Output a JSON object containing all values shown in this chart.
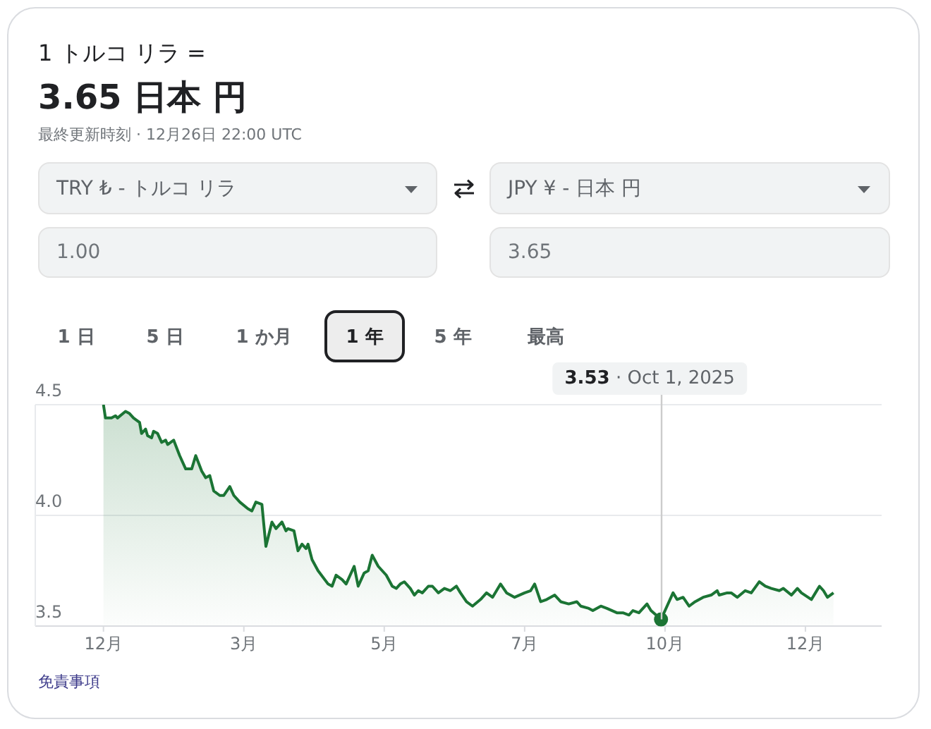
{
  "chart_data": {
    "type": "area",
    "title": "1 トルコ リラ =",
    "subtitle": "3.65 日本 円",
    "annotations": [
      "最終更新時刻 · 12月26日 22:00 UTC",
      "TRY ₺ - トルコ リラ",
      "JPY ¥ - 日本 円",
      "1.00",
      "3.65",
      "1 日",
      "5 日",
      "1 か月",
      "1 年",
      "5 年",
      "最高",
      {
        "text": "3.53 · Oct 1, 2025",
        "x": "2025-10-01",
        "y": 3.53
      },
      "免責事項"
    ],
    "x": [
      "2024-12-27",
      "2024-12-28",
      "2024-12-31",
      "2025-01-02",
      "2025-01-03",
      "2025-01-07",
      "2025-01-09",
      "2025-01-11",
      "2025-01-14",
      "2025-01-15",
      "2025-01-17",
      "2025-01-18",
      "2025-01-20",
      "2025-01-21",
      "2025-01-23",
      "2025-01-25",
      "2025-01-27",
      "2025-01-28",
      "2025-01-31",
      "2025-02-03",
      "2025-02-06",
      "2025-02-09",
      "2025-02-11",
      "2025-02-14",
      "2025-02-16",
      "2025-02-18",
      "2025-02-20",
      "2025-02-23",
      "2025-02-25",
      "2025-02-28",
      "2025-03-02",
      "2025-03-05",
      "2025-03-09",
      "2025-03-11",
      "2025-03-13",
      "2025-03-16",
      "2025-03-18",
      "2025-03-21",
      "2025-03-23",
      "2025-03-26",
      "2025-03-28",
      "2025-03-29",
      "2025-04-01",
      "2025-04-03",
      "2025-04-05",
      "2025-04-07",
      "2025-04-08",
      "2025-04-10",
      "2025-04-13",
      "2025-04-18",
      "2025-04-20",
      "2025-04-22",
      "2025-04-25",
      "2025-04-27",
      "2025-05-01",
      "2025-05-03",
      "2025-05-06",
      "2025-05-08",
      "2025-05-10",
      "2025-05-13",
      "2025-05-17",
      "2025-05-20",
      "2025-05-22",
      "2025-05-24",
      "2025-05-26",
      "2025-05-29",
      "2025-05-31",
      "2025-06-02",
      "2025-06-04",
      "2025-06-07",
      "2025-06-09",
      "2025-06-12",
      "2025-06-15",
      "2025-06-18",
      "2025-06-21",
      "2025-06-23",
      "2025-06-26",
      "2025-06-29",
      "2025-07-03",
      "2025-07-06",
      "2025-07-09",
      "2025-07-13",
      "2025-07-16",
      "2025-07-20",
      "2025-07-25",
      "2025-07-28",
      "2025-07-30",
      "2025-08-02",
      "2025-08-05",
      "2025-08-09",
      "2025-08-12",
      "2025-08-16",
      "2025-08-20",
      "2025-08-22",
      "2025-08-26",
      "2025-08-28",
      "2025-09-01",
      "2025-09-04",
      "2025-09-09",
      "2025-09-12",
      "2025-09-15",
      "2025-09-17",
      "2025-09-20",
      "2025-09-24",
      "2025-09-26",
      "2025-10-01",
      "2025-10-04",
      "2025-10-07",
      "2025-10-09",
      "2025-10-12",
      "2025-10-15",
      "2025-10-18",
      "2025-10-22",
      "2025-10-26",
      "2025-10-29",
      "2025-10-30",
      "2025-11-03",
      "2025-11-05",
      "2025-11-08",
      "2025-11-12",
      "2025-11-15",
      "2025-11-19",
      "2025-11-22",
      "2025-11-25",
      "2025-11-29",
      "2025-12-01",
      "2025-12-05",
      "2025-12-08",
      "2025-12-10",
      "2025-12-15",
      "2025-12-17",
      "2025-12-19",
      "2025-12-21",
      "2025-12-23",
      "2025-12-26"
    ],
    "values": [
      4.5,
      4.44,
      4.44,
      4.45,
      4.44,
      4.47,
      4.46,
      4.44,
      4.42,
      4.37,
      4.39,
      4.36,
      4.35,
      4.38,
      4.37,
      4.33,
      4.34,
      4.32,
      4.34,
      4.27,
      4.21,
      4.21,
      4.27,
      4.2,
      4.17,
      4.18,
      4.11,
      4.09,
      4.09,
      4.13,
      4.09,
      4.06,
      4.03,
      4.02,
      4.06,
      4.05,
      3.86,
      3.97,
      3.94,
      3.97,
      3.93,
      3.94,
      3.93,
      3.84,
      3.87,
      3.85,
      3.87,
      3.8,
      3.75,
      3.69,
      3.68,
      3.73,
      3.71,
      3.69,
      3.77,
      3.68,
      3.74,
      3.75,
      3.82,
      3.77,
      3.73,
      3.68,
      3.67,
      3.69,
      3.7,
      3.67,
      3.64,
      3.66,
      3.65,
      3.68,
      3.68,
      3.65,
      3.67,
      3.66,
      3.68,
      3.65,
      3.61,
      3.59,
      3.62,
      3.65,
      3.63,
      3.69,
      3.65,
      3.63,
      3.65,
      3.66,
      3.69,
      3.61,
      3.62,
      3.64,
      3.61,
      3.6,
      3.61,
      3.59,
      3.58,
      3.57,
      3.59,
      3.58,
      3.56,
      3.56,
      3.55,
      3.57,
      3.56,
      3.6,
      3.57,
      3.53,
      3.59,
      3.65,
      3.62,
      3.63,
      3.59,
      3.61,
      3.63,
      3.64,
      3.66,
      3.64,
      3.65,
      3.65,
      3.63,
      3.66,
      3.65,
      3.7,
      3.68,
      3.67,
      3.66,
      3.67,
      3.64,
      3.67,
      3.65,
      3.62,
      3.65,
      3.68,
      3.66,
      3.63,
      3.65
    ],
    "color": "#1b7434",
    "xlim": [
      "2024-11-23",
      "2026-01-19"
    ],
    "xticks": [
      {
        "value": "2024-12-27",
        "label": "12月"
      },
      {
        "value": "2025-03-07",
        "label": "3月"
      },
      {
        "value": "2025-05-16",
        "label": "5月"
      },
      {
        "value": "2025-07-25",
        "label": "7月"
      },
      {
        "value": "2025-10-03",
        "label": "10月"
      },
      {
        "value": "2025-12-12",
        "label": "12月"
      }
    ],
    "ylim": [
      3.5,
      4.5
    ],
    "yticks": [
      3.5,
      {
        "value": 4,
        "label": "4.0"
      },
      4.5
    ],
    "grid": "y"
  }
}
